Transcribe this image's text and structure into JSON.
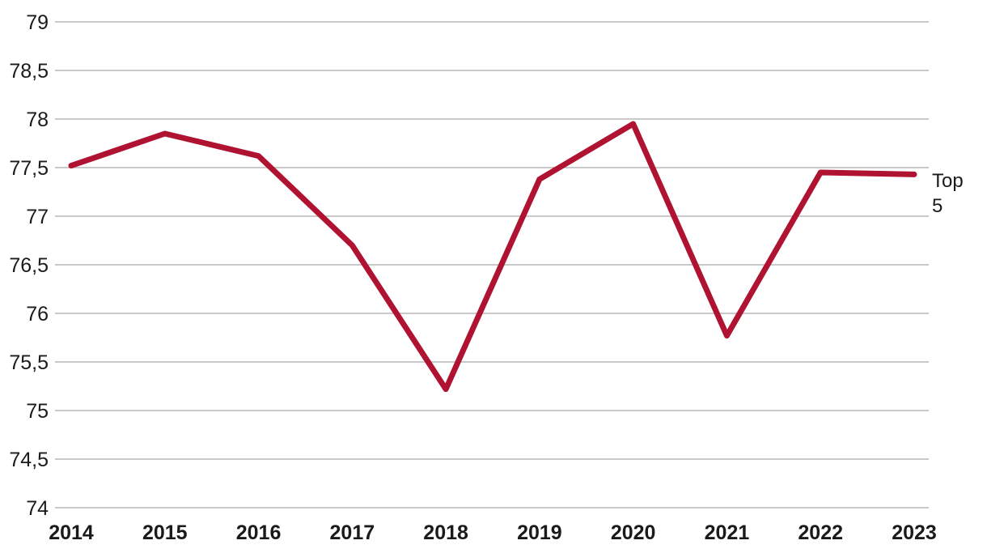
{
  "chart_data": {
    "type": "line",
    "title": "",
    "xlabel": "",
    "ylabel": "",
    "categories": [
      "2014",
      "2015",
      "2016",
      "2017",
      "2018",
      "2019",
      "2020",
      "2021",
      "2022",
      "2023"
    ],
    "series": [
      {
        "name": "Top 5",
        "values": [
          77.52,
          77.85,
          77.62,
          76.7,
          75.22,
          77.38,
          77.95,
          75.77,
          77.45,
          77.43
        ],
        "color": "#B01231"
      }
    ],
    "ylim": [
      74,
      79
    ],
    "ytick_step": 0.5,
    "yticks": [
      "79",
      "78,5",
      "78",
      "77,5",
      "77",
      "76,5",
      "76",
      "75,5",
      "75",
      "74,5",
      "74"
    ],
    "decimal_separator": ",",
    "grid": "horizontal-only",
    "gridline_color": "#C9C9C9",
    "text_color": "#1A1A1A",
    "background_color": "#FFFFFF",
    "legend_position": "end-of-line-right",
    "series_end_label": "Top 5"
  }
}
